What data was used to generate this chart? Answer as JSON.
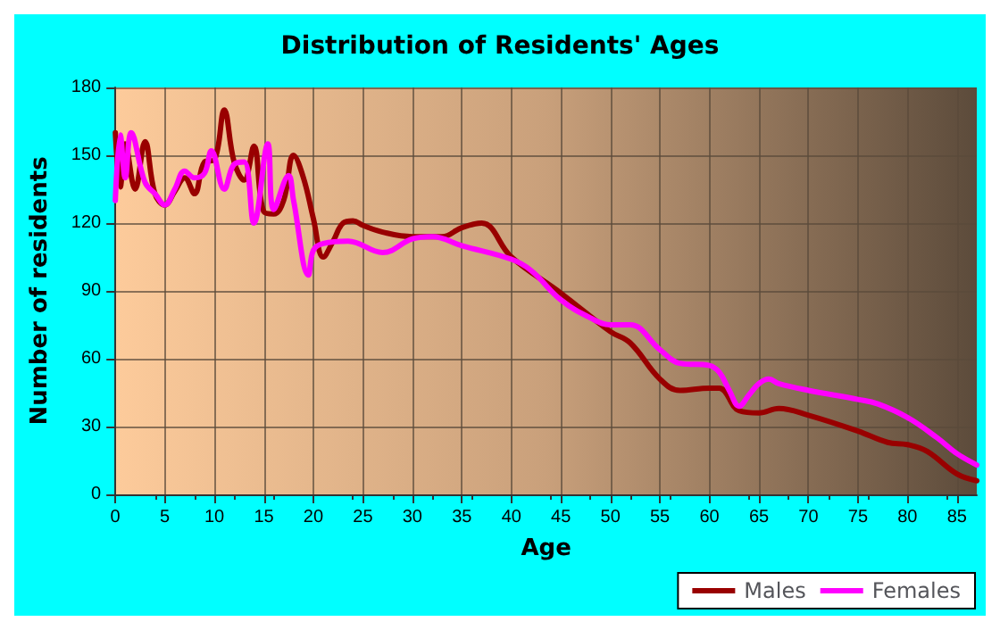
{
  "chart_data": {
    "type": "line",
    "title": "Distribution of Residents' Ages",
    "xlabel": "Age",
    "ylabel": "Number of residents",
    "xlim": [
      0,
      87
    ],
    "xticks": [
      0,
      5,
      10,
      15,
      20,
      25,
      30,
      35,
      40,
      45,
      50,
      55,
      60,
      65,
      70,
      75,
      80,
      85
    ],
    "ylim": [
      0,
      180
    ],
    "yticks": [
      0,
      30,
      60,
      90,
      120,
      150,
      180
    ],
    "grid": true,
    "legend": "bottom",
    "marker": "none",
    "line_style": "solid",
    "series": [
      {
        "name": "Males",
        "color": "#990000",
        "x": [
          0,
          0.5,
          1,
          2,
          3,
          4,
          5,
          6,
          7,
          8,
          9,
          10,
          11,
          12,
          13,
          14,
          15,
          16,
          17,
          18,
          19,
          20,
          21,
          22,
          23,
          24,
          25,
          27,
          30,
          33,
          35,
          37,
          40,
          45,
          50,
          52,
          55,
          57,
          60,
          61,
          63,
          65,
          67,
          70,
          75,
          78,
          80,
          82,
          85,
          87
        ],
        "values": [
          160,
          136,
          155,
          135,
          156,
          133,
          128,
          134,
          140,
          133,
          147,
          148,
          170,
          147,
          139,
          154,
          125,
          124,
          130,
          150,
          140,
          122,
          105,
          112,
          120,
          121,
          119,
          116,
          114,
          114,
          118,
          120,
          105,
          89,
          72,
          67,
          51,
          46,
          47,
          47,
          37,
          36,
          38,
          35,
          28,
          23,
          22,
          19,
          9,
          6
        ]
      },
      {
        "name": "Females",
        "color": "#ff00ff",
        "x": [
          0,
          0.5,
          1,
          1.6,
          3,
          4,
          5,
          6,
          7,
          8,
          9,
          9.7,
          11,
          12,
          13,
          14,
          15.4,
          16,
          17.5,
          18,
          19.5,
          20,
          21,
          23.5,
          27,
          30,
          32,
          35,
          40,
          42,
          45,
          48,
          50,
          52,
          55,
          57,
          60,
          61,
          62,
          63,
          64,
          65,
          66,
          67,
          70,
          75,
          77,
          80,
          83,
          85,
          87
        ],
        "values": [
          130,
          159,
          140,
          160,
          138,
          133,
          128,
          135,
          143,
          140,
          142,
          152,
          135,
          146,
          147,
          120,
          155,
          126,
          141,
          130,
          97,
          108,
          111,
          112,
          107,
          113,
          114,
          110,
          104,
          99,
          86,
          78,
          75,
          75,
          64,
          58,
          57,
          54,
          46,
          39,
          44,
          49,
          51,
          49,
          46,
          42,
          40,
          34,
          25,
          18,
          13
        ]
      }
    ]
  }
}
